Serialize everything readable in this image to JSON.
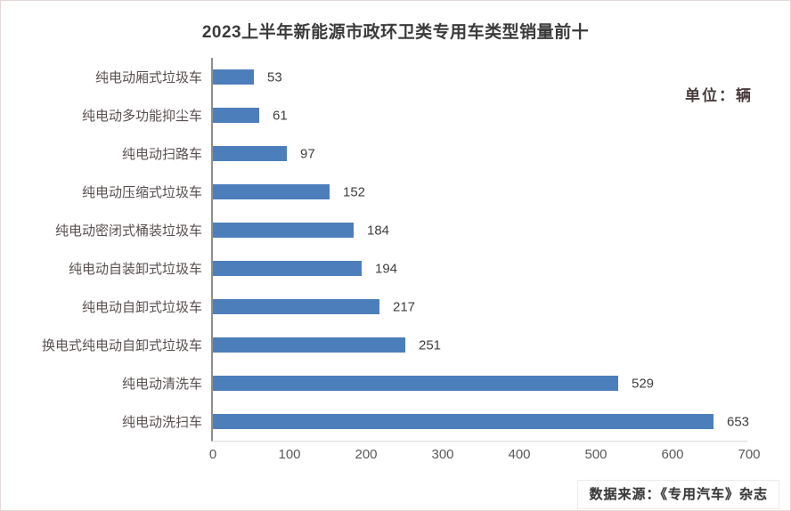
{
  "header": {
    "title": "2023上半年新能源市政环卫类专用车类型销量前十",
    "unit_label": "单位：辆"
  },
  "footer": {
    "source_label": "数据来源：《专用汽车》杂志"
  },
  "colors": {
    "bar": "#4d7ebc",
    "title_text": "#3b3b3b",
    "category_text": "#5a5050",
    "value_text": "#3f3f3f",
    "axis_line": "#8f8f8f",
    "tick_text": "#595959",
    "frame_border": "#e6d8d8"
  },
  "chart_data": {
    "type": "bar",
    "orientation": "horizontal",
    "title": "2023上半年新能源市政环卫类专用车类型销量前十",
    "unit": "辆",
    "categories": [
      "纯电动厢式垃圾车",
      "纯电动多功能抑尘车",
      "纯电动扫路车",
      "纯电动压缩式垃圾车",
      "纯电动密闭式桶装垃圾车",
      "纯电动自装卸式垃圾车",
      "纯电动自卸式垃圾车",
      "换电式纯电动自卸式垃圾车",
      "纯电动清洗车",
      "纯电动洗扫车"
    ],
    "values": [
      53,
      61,
      97,
      152,
      184,
      194,
      217,
      251,
      529,
      653
    ],
    "xlabel": "",
    "ylabel": "",
    "xlim": [
      0,
      700
    ],
    "x_ticks": [
      0,
      100,
      200,
      300,
      400,
      500,
      600,
      700
    ],
    "grid": false,
    "legend": false,
    "data_labels": true,
    "sort_order": "ascending-top-to-bottom-smallest-first"
  }
}
